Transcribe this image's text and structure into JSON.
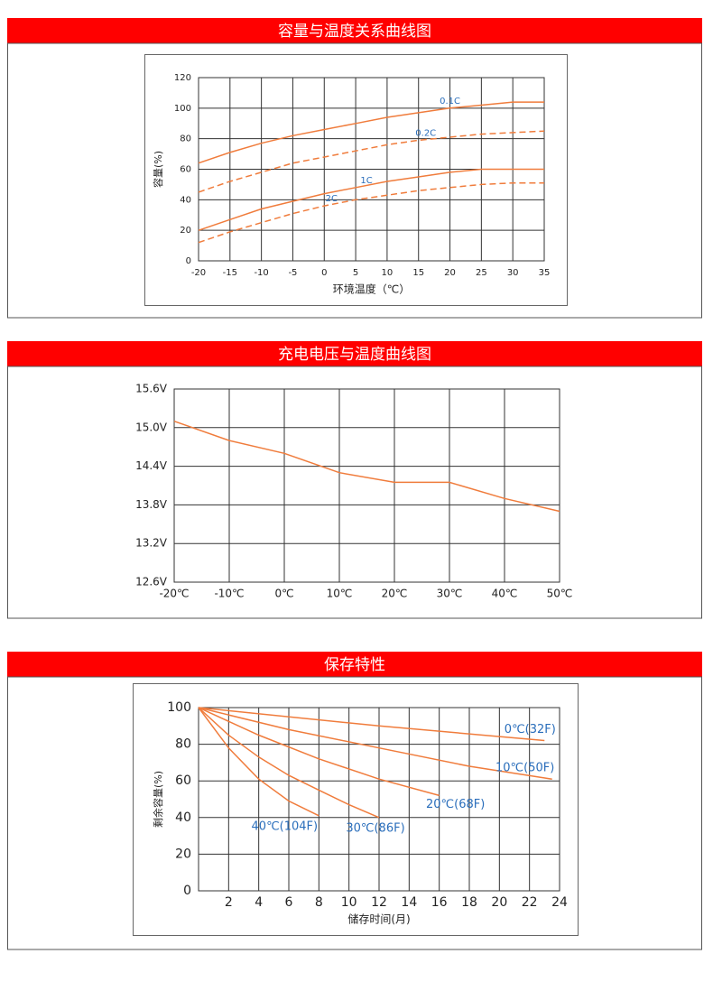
{
  "chart_data": [
    {
      "type": "line",
      "title": "容量与温度关系曲线图",
      "xlabel": "环境温度（℃）",
      "ylabel": "容量(%)",
      "x": [
        -20,
        -15,
        -10,
        -5,
        0,
        5,
        10,
        15,
        20,
        25,
        30,
        35
      ],
      "xlim": [
        -20,
        35
      ],
      "xticks": [
        -20,
        -15,
        -10,
        -5,
        0,
        5,
        10,
        15,
        20,
        25,
        30,
        35
      ],
      "ylim": [
        0,
        120
      ],
      "yticks": [
        0,
        20,
        40,
        60,
        80,
        100,
        120
      ],
      "grid": true,
      "series": [
        {
          "name": "0.1C",
          "color": "#f07c3c",
          "dash": false,
          "values": [
            64,
            71,
            77,
            82,
            86,
            90,
            94,
            97,
            100,
            102,
            104,
            104
          ]
        },
        {
          "name": "0.2C",
          "color": "#f07c3c",
          "dash": true,
          "values": [
            45,
            52,
            58,
            64,
            68,
            72,
            76,
            79,
            81,
            83,
            84,
            85
          ]
        },
        {
          "name": "1C",
          "color": "#f07c3c",
          "dash": false,
          "values": [
            20,
            27,
            34,
            39,
            44,
            48,
            52,
            55,
            58,
            60,
            60,
            60
          ]
        },
        {
          "name": "2C",
          "color": "#f07c3c",
          "dash": true,
          "values": [
            12,
            19,
            25,
            31,
            36,
            40,
            43,
            46,
            48,
            50,
            51,
            51
          ]
        }
      ],
      "label_color": "#2a6ebb"
    },
    {
      "type": "line",
      "title": "充电电压与温度曲线图",
      "x": [
        -20,
        -10,
        0,
        10,
        20,
        30,
        40,
        50
      ],
      "xlim": [
        -20,
        50
      ],
      "xticks": [
        {
          "value": -20,
          "label": "-20℃"
        },
        {
          "value": -10,
          "label": "-10℃"
        },
        {
          "value": 0,
          "label": "0℃"
        },
        {
          "value": 10,
          "label": "10℃"
        },
        {
          "value": 20,
          "label": "20℃"
        },
        {
          "value": 30,
          "label": "30℃"
        },
        {
          "value": 40,
          "label": "40℃"
        },
        {
          "value": 50,
          "label": "50℃"
        }
      ],
      "ylim": [
        12.6,
        15.6
      ],
      "yticks": [
        {
          "value": 12.6,
          "label": "12.6V"
        },
        {
          "value": 13.2,
          "label": "13.2V"
        },
        {
          "value": 13.8,
          "label": "13.8V"
        },
        {
          "value": 14.4,
          "label": "14.4V"
        },
        {
          "value": 15.0,
          "label": "15.0V"
        },
        {
          "value": 15.6,
          "label": "15.6V"
        }
      ],
      "grid": true,
      "series": [
        {
          "color": "#f07c3c",
          "dash": false,
          "values": [
            15.1,
            14.8,
            14.6,
            14.3,
            14.15,
            14.15,
            13.9,
            13.7
          ]
        }
      ]
    },
    {
      "type": "line",
      "title": "保存特性",
      "xlabel": "储存时间(月)",
      "ylabel": "剩余容量(%)",
      "xlim": [
        0,
        24
      ],
      "xticks": [
        2,
        4,
        6,
        8,
        10,
        12,
        14,
        16,
        18,
        20,
        22,
        24
      ],
      "ylim": [
        0,
        100
      ],
      "yticks": [
        0,
        20,
        40,
        60,
        80,
        100
      ],
      "grid": true,
      "series": [
        {
          "name": "0℃(32F)",
          "color": "#f07c3c",
          "dash": false,
          "x": [
            0,
            12,
            23
          ],
          "values": [
            100,
            90,
            82
          ]
        },
        {
          "name": "10℃(50F)",
          "color": "#f07c3c",
          "dash": false,
          "x": [
            0,
            6,
            12,
            18,
            23.5
          ],
          "values": [
            100,
            88,
            78,
            68,
            61
          ]
        },
        {
          "name": "20℃(68F)",
          "color": "#f07c3c",
          "dash": false,
          "x": [
            0,
            4,
            8,
            12,
            16
          ],
          "values": [
            100,
            85,
            72,
            61,
            52
          ]
        },
        {
          "name": "30℃(86F)",
          "color": "#f07c3c",
          "dash": false,
          "x": [
            0,
            2,
            4,
            6,
            8,
            10,
            12
          ],
          "values": [
            100,
            85,
            73,
            63,
            55,
            47,
            40
          ]
        },
        {
          "name": "40℃(104F)",
          "color": "#f07c3c",
          "dash": false,
          "x": [
            0,
            2,
            4,
            6,
            8
          ],
          "values": [
            100,
            78,
            61,
            49,
            41
          ]
        }
      ],
      "label_color": "#2a6ebb"
    }
  ]
}
